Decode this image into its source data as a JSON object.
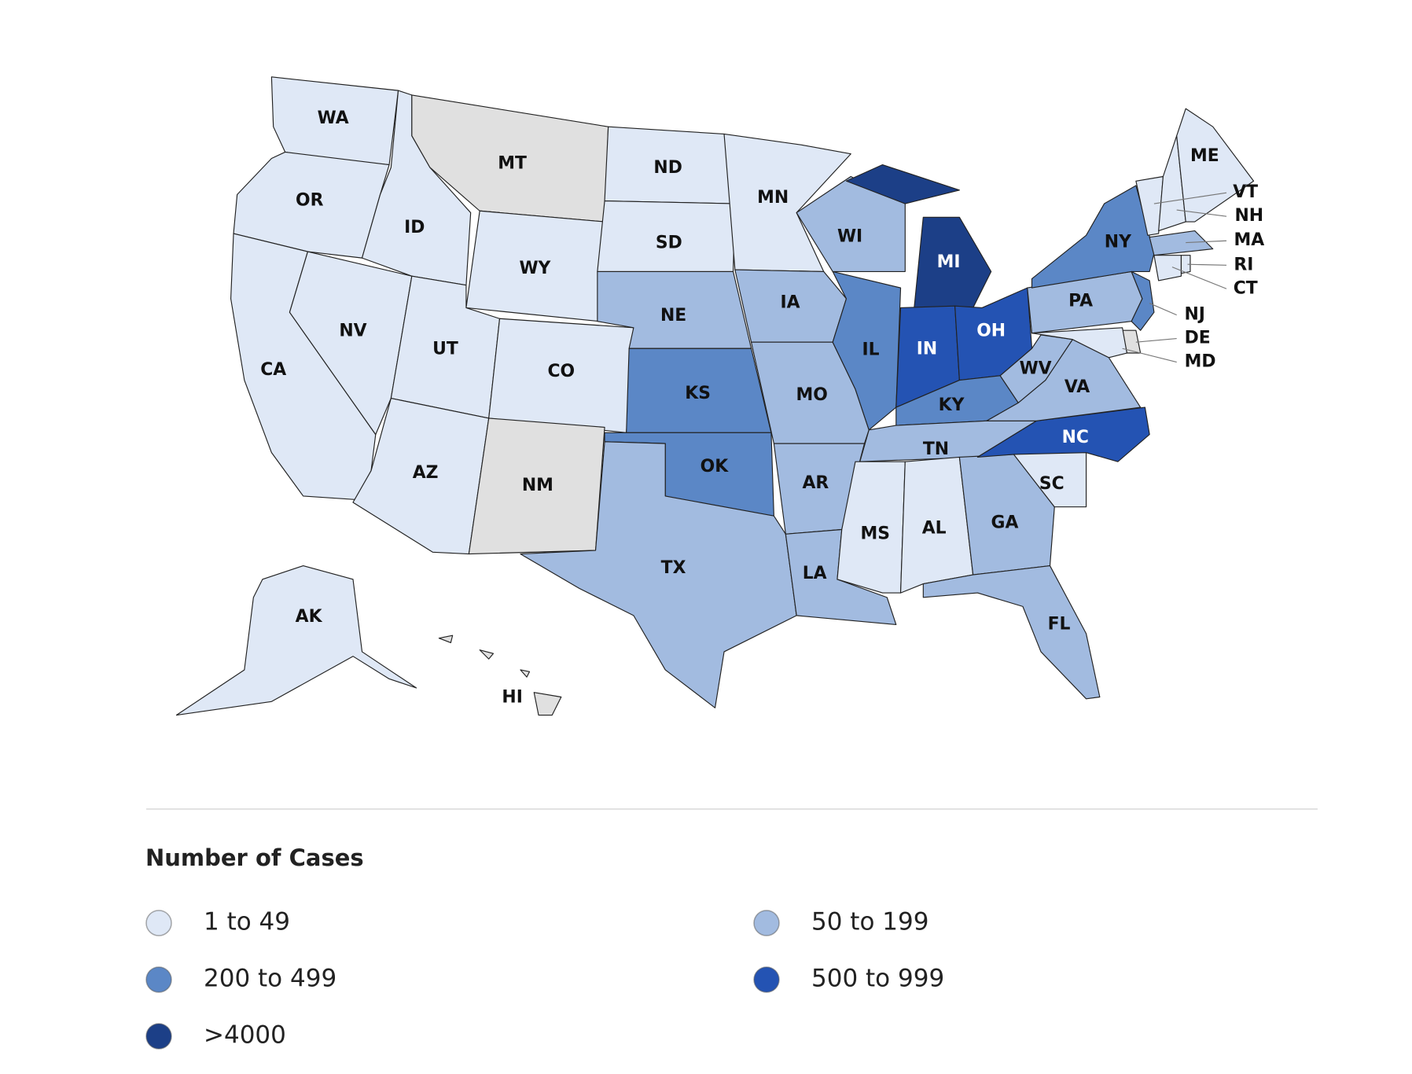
{
  "legend": {
    "title": "Number of Cases",
    "items": [
      {
        "label": "1 to 49",
        "color": "#dfe8f6"
      },
      {
        "label": "50 to 199",
        "color": "#a2bbe0"
      },
      {
        "label": "200 to 499",
        "color": "#5b87c6"
      },
      {
        "label": "500 to 999",
        "color": "#2453b3"
      },
      {
        "label": ">4000",
        "color": "#1c3f87"
      }
    ]
  },
  "no_data_color": "#e0e0e0",
  "states": [
    {
      "label": "WA",
      "color": "#dfe8f6"
    },
    {
      "label": "OR",
      "color": "#dfe8f6"
    },
    {
      "label": "CA",
      "color": "#dfe8f6"
    },
    {
      "label": "NV",
      "color": "#dfe8f6"
    },
    {
      "label": "ID",
      "color": "#dfe8f6"
    },
    {
      "label": "MT",
      "color": "#e0e0e0"
    },
    {
      "label": "WY",
      "color": "#dfe8f6"
    },
    {
      "label": "UT",
      "color": "#dfe8f6"
    },
    {
      "label": "CO",
      "color": "#dfe8f6"
    },
    {
      "label": "AZ",
      "color": "#dfe8f6"
    },
    {
      "label": "NM",
      "color": "#e0e0e0"
    },
    {
      "label": "ND",
      "color": "#dfe8f6"
    },
    {
      "label": "SD",
      "color": "#dfe8f6"
    },
    {
      "label": "NE",
      "color": "#a2bbe0"
    },
    {
      "label": "KS",
      "color": "#5b87c6"
    },
    {
      "label": "OK",
      "color": "#5b87c6"
    },
    {
      "label": "TX",
      "color": "#a2bbe0"
    },
    {
      "label": "MN",
      "color": "#dfe8f6"
    },
    {
      "label": "IA",
      "color": "#a2bbe0"
    },
    {
      "label": "MO",
      "color": "#a2bbe0"
    },
    {
      "label": "AR",
      "color": "#a2bbe0"
    },
    {
      "label": "LA",
      "color": "#a2bbe0"
    },
    {
      "label": "WI",
      "color": "#a2bbe0"
    },
    {
      "label": "IL",
      "color": "#5b87c6"
    },
    {
      "label": "MI",
      "color": "#1c3f87"
    },
    {
      "label": "IN",
      "color": "#2453b3"
    },
    {
      "label": "OH",
      "color": "#2453b3"
    },
    {
      "label": "KY",
      "color": "#5b87c6"
    },
    {
      "label": "TN",
      "color": "#a2bbe0"
    },
    {
      "label": "MS",
      "color": "#dfe8f6"
    },
    {
      "label": "AL",
      "color": "#dfe8f6"
    },
    {
      "label": "GA",
      "color": "#a2bbe0"
    },
    {
      "label": "FL",
      "color": "#a2bbe0"
    },
    {
      "label": "SC",
      "color": "#dfe8f6"
    },
    {
      "label": "NC",
      "color": "#2453b3"
    },
    {
      "label": "VA",
      "color": "#a2bbe0"
    },
    {
      "label": "WV",
      "color": "#a2bbe0"
    },
    {
      "label": "PA",
      "color": "#a2bbe0"
    },
    {
      "label": "NY",
      "color": "#5b87c6"
    },
    {
      "label": "NJ",
      "color": "#5b87c6"
    },
    {
      "label": "DE",
      "color": "#e0e0e0"
    },
    {
      "label": "MD",
      "color": "#dfe8f6"
    },
    {
      "label": "VT",
      "color": "#dfe8f6"
    },
    {
      "label": "NH",
      "color": "#dfe8f6"
    },
    {
      "label": "ME",
      "color": "#dfe8f6"
    },
    {
      "label": "MA",
      "color": "#a2bbe0"
    },
    {
      "label": "CT",
      "color": "#dfe8f6"
    },
    {
      "label": "RI",
      "color": "#dfe8f6"
    },
    {
      "label": "AK",
      "color": "#dfe8f6"
    },
    {
      "label": "HI",
      "color": "#e0e0e0"
    }
  ]
}
